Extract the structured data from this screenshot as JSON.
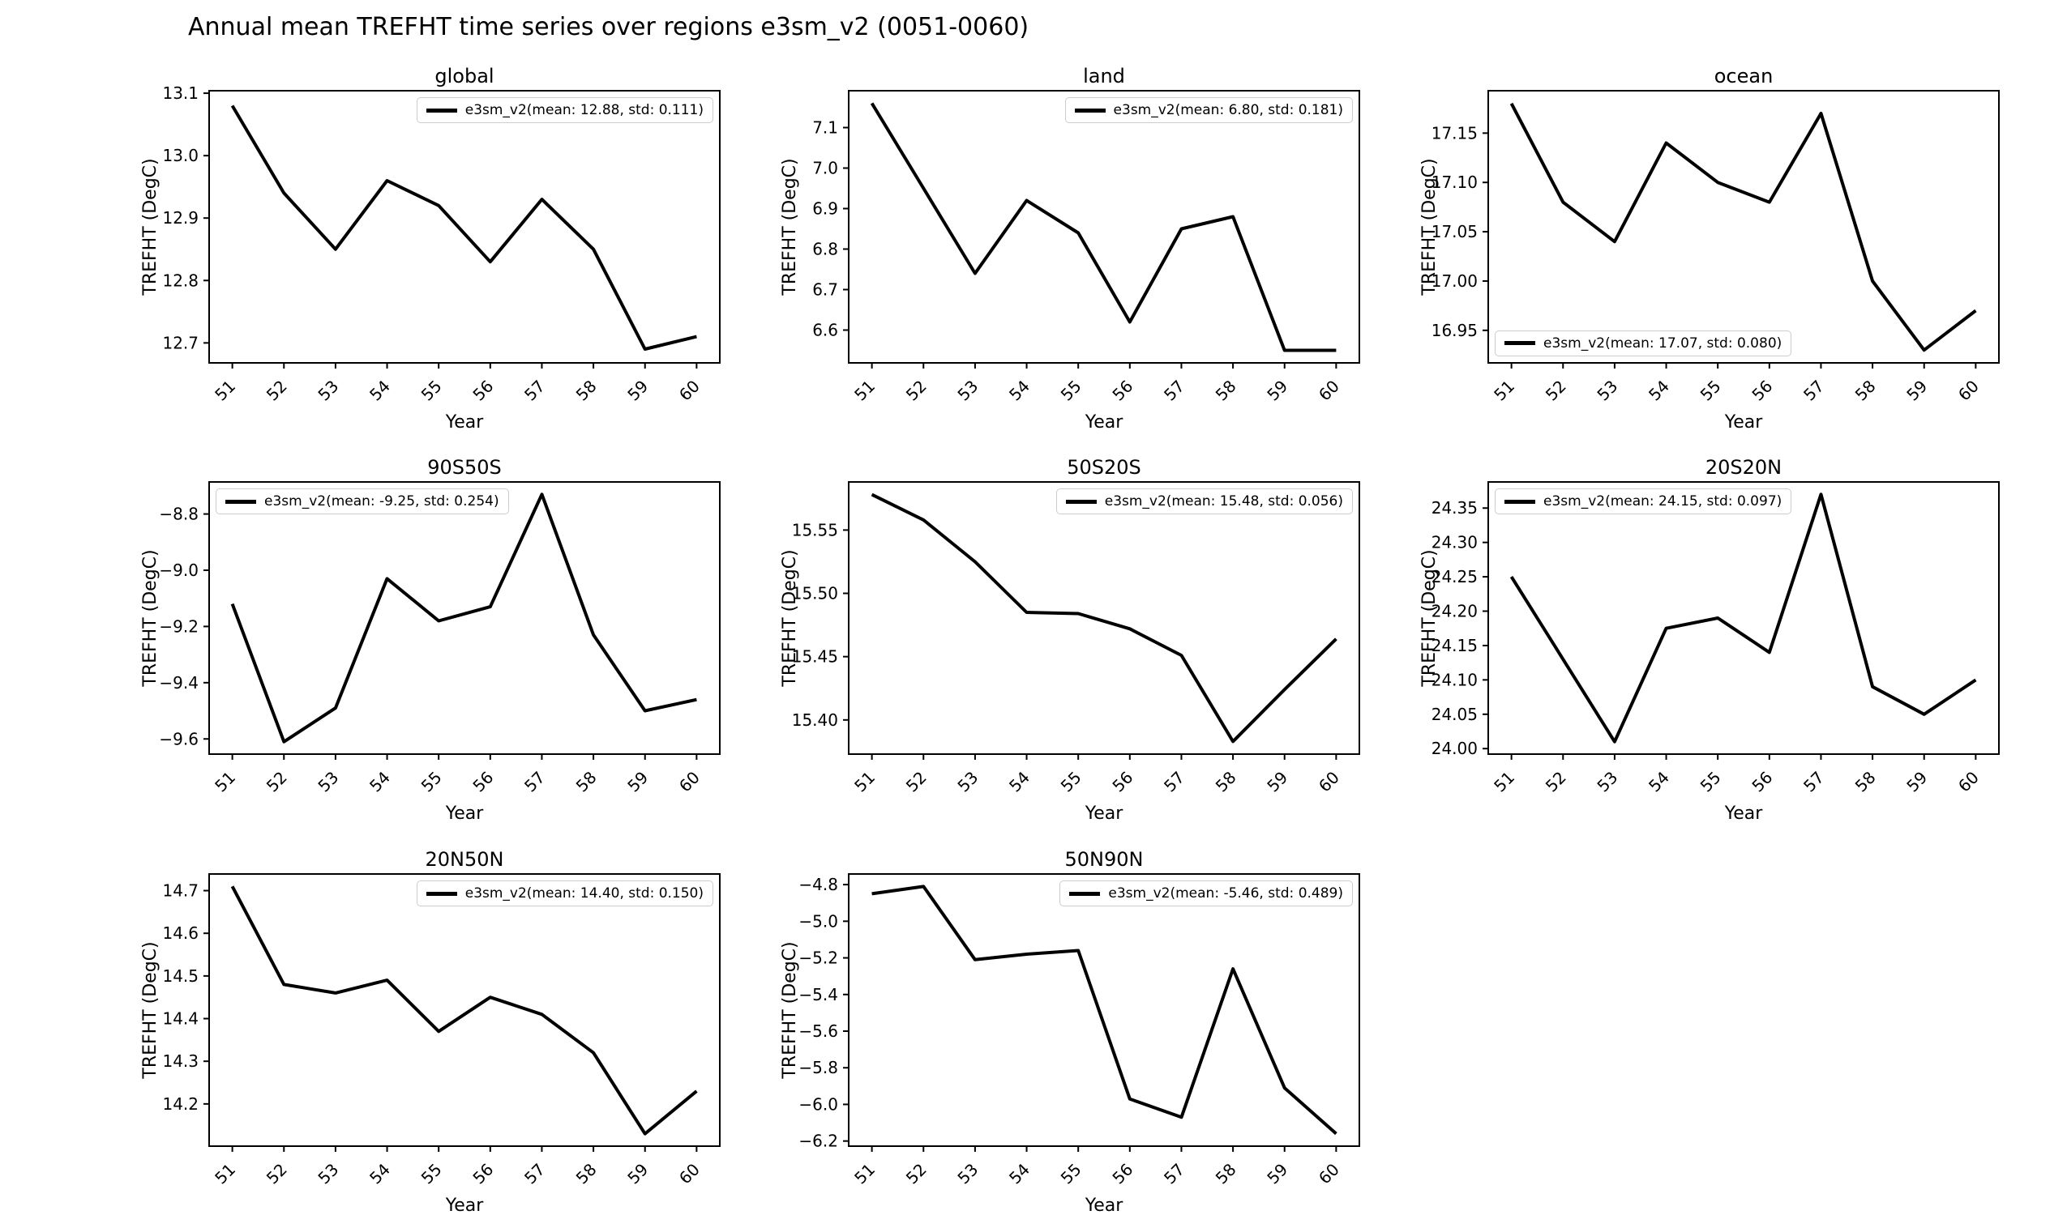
{
  "figure": {
    "title": "Annual mean TREFHT time series over regions e3sm_v2 (0051-0060)",
    "background_color": "#ffffff",
    "line_color": "#000000",
    "text_color": "#000000",
    "legend_border_color": "#cccccc"
  },
  "axis": {
    "xlabel": "Year",
    "ylabel": "TREFHT (DegC)",
    "x_values": [
      51,
      52,
      53,
      54,
      55,
      56,
      57,
      58,
      59,
      60
    ],
    "x_tick_labels": [
      "51",
      "52",
      "53",
      "54",
      "55",
      "56",
      "57",
      "58",
      "59",
      "60"
    ],
    "xlim": [
      50.55,
      60.45
    ],
    "x_tick_rotation_deg": 45,
    "grid": false
  },
  "chart_data": [
    {
      "id": "global",
      "type": "line",
      "title": "global",
      "legend": "e3sm_v2(mean: 12.88, std: 0.111)",
      "legend_loc": "upper-right",
      "x": [
        51,
        52,
        53,
        54,
        55,
        56,
        57,
        58,
        59,
        60
      ],
      "values": [
        13.08,
        12.94,
        12.85,
        12.96,
        12.92,
        12.83,
        12.93,
        12.85,
        12.69,
        12.71
      ],
      "mean": 12.88,
      "std": 0.111,
      "ylim": [
        12.668,
        13.104
      ],
      "yticks": [
        12.7,
        12.8,
        12.9,
        13.0,
        13.1
      ],
      "ytick_labels": [
        "12.7",
        "12.8",
        "12.9",
        "13.0",
        "13.1"
      ],
      "grid_pos": {
        "row": 0,
        "col": 0
      }
    },
    {
      "id": "land",
      "type": "line",
      "title": "land",
      "legend": "e3sm_v2(mean: 6.80, std: 0.181)",
      "legend_loc": "upper-right",
      "x": [
        51,
        52,
        53,
        54,
        55,
        56,
        57,
        58,
        59,
        60
      ],
      "values": [
        7.16,
        6.95,
        6.74,
        6.92,
        6.84,
        6.62,
        6.85,
        6.88,
        6.55,
        6.55
      ],
      "mean": 6.8,
      "std": 0.181,
      "ylim": [
        6.519,
        7.191
      ],
      "yticks": [
        6.6,
        6.7,
        6.8,
        6.9,
        7.0,
        7.1
      ],
      "ytick_labels": [
        "6.6",
        "6.7",
        "6.8",
        "6.9",
        "7.0",
        "7.1"
      ],
      "grid_pos": {
        "row": 0,
        "col": 1
      }
    },
    {
      "id": "ocean",
      "type": "line",
      "title": "ocean",
      "legend": "e3sm_v2(mean: 17.07, std: 0.080)",
      "legend_loc": "lower-left",
      "x": [
        51,
        52,
        53,
        54,
        55,
        56,
        57,
        58,
        59,
        60
      ],
      "values": [
        17.18,
        17.08,
        17.04,
        17.14,
        17.1,
        17.08,
        17.17,
        17.0,
        16.93,
        16.97
      ],
      "mean": 17.07,
      "std": 0.08,
      "ylim": [
        16.917,
        17.193
      ],
      "yticks": [
        16.95,
        17.0,
        17.05,
        17.1,
        17.15
      ],
      "ytick_labels": [
        "16.95",
        "17.00",
        "17.05",
        "17.10",
        "17.15"
      ],
      "grid_pos": {
        "row": 0,
        "col": 2
      }
    },
    {
      "id": "90S50S",
      "type": "line",
      "title": "90S50S",
      "legend": "e3sm_v2(mean: -9.25, std: 0.254)",
      "legend_loc": "upper-left",
      "x": [
        51,
        52,
        53,
        54,
        55,
        56,
        57,
        58,
        59,
        60
      ],
      "values": [
        -9.12,
        -9.61,
        -9.49,
        -9.03,
        -9.18,
        -9.13,
        -8.73,
        -9.23,
        -9.5,
        -9.46
      ],
      "mean": -9.25,
      "std": 0.254,
      "ylim": [
        -9.654,
        -8.686
      ],
      "yticks": [
        -8.8,
        -9.0,
        -9.2,
        -9.4,
        -9.6
      ],
      "ytick_labels": [
        "−8.8",
        "−9.0",
        "−9.2",
        "−9.4",
        "−9.6"
      ],
      "grid_pos": {
        "row": 1,
        "col": 0
      }
    },
    {
      "id": "50S20S",
      "type": "line",
      "title": "50S20S",
      "legend": "e3sm_v2(mean: 15.48, std: 0.056)",
      "legend_loc": "upper-right",
      "x": [
        51,
        52,
        53,
        54,
        55,
        56,
        57,
        58,
        59,
        60
      ],
      "values": [
        15.578,
        15.558,
        15.525,
        15.485,
        15.484,
        15.472,
        15.451,
        15.383,
        15.424,
        15.464
      ],
      "mean": 15.48,
      "std": 0.056,
      "ylim": [
        15.373,
        15.588
      ],
      "yticks": [
        15.4,
        15.45,
        15.5,
        15.55
      ],
      "ytick_labels": [
        "15.40",
        "15.45",
        "15.50",
        "15.55"
      ],
      "grid_pos": {
        "row": 1,
        "col": 1
      }
    },
    {
      "id": "20S20N",
      "type": "line",
      "title": "20S20N",
      "legend": "e3sm_v2(mean: 24.15, std: 0.097)",
      "legend_loc": "upper-left",
      "x": [
        51,
        52,
        53,
        54,
        55,
        56,
        57,
        58,
        59,
        60
      ],
      "values": [
        24.25,
        24.13,
        24.01,
        24.175,
        24.19,
        24.14,
        24.37,
        24.09,
        24.05,
        24.1
      ],
      "mean": 24.15,
      "std": 0.097,
      "ylim": [
        23.992,
        24.388
      ],
      "yticks": [
        24.0,
        24.05,
        24.1,
        24.15,
        24.2,
        24.25,
        24.3,
        24.35
      ],
      "ytick_labels": [
        "24.00",
        "24.05",
        "24.10",
        "24.15",
        "24.20",
        "24.25",
        "24.30",
        "24.35"
      ],
      "grid_pos": {
        "row": 1,
        "col": 2
      }
    },
    {
      "id": "20N50N",
      "type": "line",
      "title": "20N50N",
      "legend": "e3sm_v2(mean: 14.40, std: 0.150)",
      "legend_loc": "upper-right",
      "x": [
        51,
        52,
        53,
        54,
        55,
        56,
        57,
        58,
        59,
        60
      ],
      "values": [
        14.71,
        14.48,
        14.46,
        14.49,
        14.37,
        14.45,
        14.41,
        14.32,
        14.13,
        14.23
      ],
      "mean": 14.4,
      "std": 0.15,
      "ylim": [
        14.101,
        14.739
      ],
      "yticks": [
        14.2,
        14.3,
        14.4,
        14.5,
        14.6,
        14.7
      ],
      "ytick_labels": [
        "14.2",
        "14.3",
        "14.4",
        "14.5",
        "14.6",
        "14.7"
      ],
      "grid_pos": {
        "row": 2,
        "col": 0
      }
    },
    {
      "id": "50N90N",
      "type": "line",
      "title": "50N90N",
      "legend": "e3sm_v2(mean: -5.46, std: 0.489)",
      "legend_loc": "upper-right",
      "x": [
        51,
        52,
        53,
        54,
        55,
        56,
        57,
        58,
        59,
        60
      ],
      "values": [
        -4.85,
        -4.81,
        -5.21,
        -5.18,
        -5.16,
        -5.97,
        -6.07,
        -5.26,
        -5.91,
        -6.16
      ],
      "mean": -5.46,
      "std": 0.489,
      "ylim": [
        -6.228,
        -4.742
      ],
      "yticks": [
        -4.8,
        -5.0,
        -5.2,
        -5.4,
        -5.6,
        -5.8,
        -6.0,
        -6.2
      ],
      "ytick_labels": [
        "−4.8",
        "−5.0",
        "−5.2",
        "−5.4",
        "−5.6",
        "−5.8",
        "−6.0",
        "−6.2"
      ],
      "grid_pos": {
        "row": 2,
        "col": 1
      }
    }
  ]
}
